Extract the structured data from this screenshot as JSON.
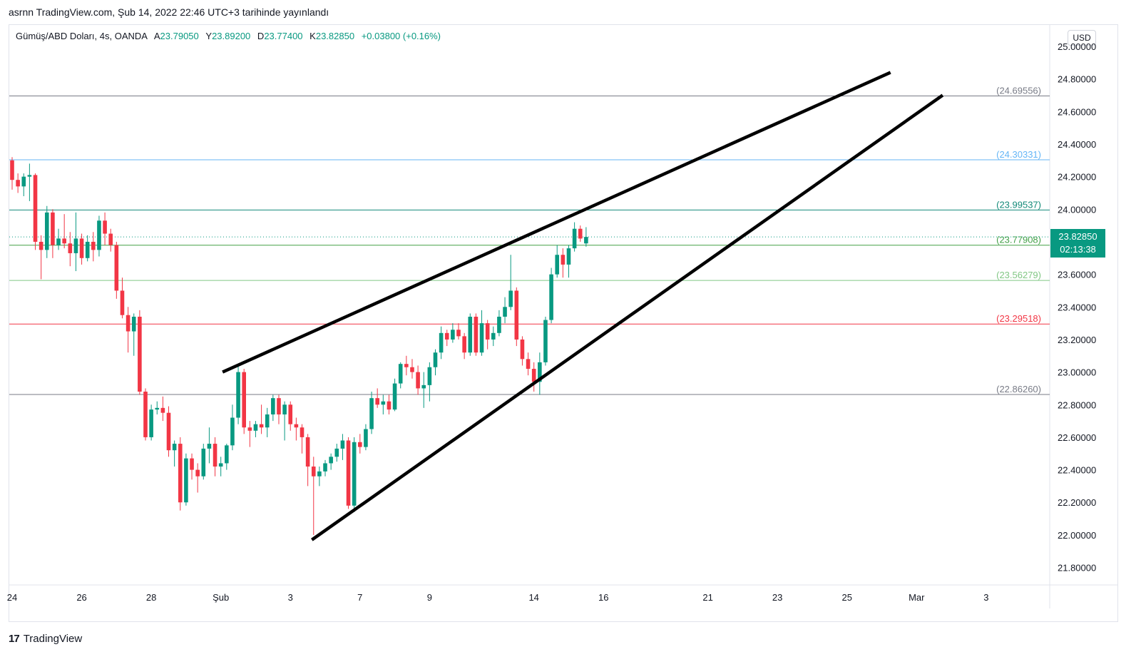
{
  "header": {
    "published": "asrnn TradingView.com, Şub 14, 2022 22:46 UTC+3 tarihinde yayınlandı"
  },
  "legend": {
    "symbol": "Gümüş/ABD Doları, 4s, OANDA",
    "open_label": "A",
    "open": "23.79050",
    "high_label": "Y",
    "high": "23.89200",
    "low_label": "D",
    "low": "23.77400",
    "close_label": "K",
    "close": "23.82850",
    "change": "+0.03800 (+0.16%)"
  },
  "currency": "USD",
  "last_price": {
    "price": "23.82850",
    "countdown": "02:13:38"
  },
  "footer": {
    "brand": "TradingView"
  },
  "colors": {
    "up": "#089981",
    "down": "#f23645",
    "line": "#000000"
  },
  "chart_data": {
    "type": "candlestick",
    "y_axis": {
      "ticks": [
        "25.00000",
        "24.80000",
        "24.60000",
        "24.40000",
        "24.20000",
        "24.00000",
        "23.80000",
        "23.60000",
        "23.40000",
        "23.20000",
        "23.00000",
        "22.80000",
        "22.60000",
        "22.40000",
        "22.20000",
        "22.00000",
        "21.80000"
      ],
      "range": [
        21.65,
        25.08
      ]
    },
    "x_axis": {
      "ticks": [
        {
          "label": "24",
          "i": 0
        },
        {
          "label": "26",
          "i": 12
        },
        {
          "label": "28",
          "i": 24
        },
        {
          "label": "Şub",
          "i": 36
        },
        {
          "label": "3",
          "i": 48
        },
        {
          "label": "7",
          "i": 60
        },
        {
          "label": "9",
          "i": 72
        },
        {
          "label": "14",
          "i": 90
        },
        {
          "label": "16",
          "i": 102
        },
        {
          "label": "21",
          "i": 120
        },
        {
          "label": "23",
          "i": 132
        },
        {
          "label": "25",
          "i": 144
        },
        {
          "label": "Mar",
          "i": 156
        },
        {
          "label": "3",
          "i": 168
        }
      ]
    },
    "horizontal_levels": [
      {
        "label": "(24.69556)",
        "value": 24.69556,
        "color": "#787b86"
      },
      {
        "label": "(24.30331)",
        "value": 24.30331,
        "color": "#64b5f6"
      },
      {
        "label": "(23.99537)",
        "value": 23.99537,
        "color": "#138a79"
      },
      {
        "label": "(23.77908)",
        "value": 23.77908,
        "color": "#43a047"
      },
      {
        "label": "(23.56279)",
        "value": 23.56279,
        "color": "#81c784"
      },
      {
        "label": "(23.29518)",
        "value": 23.29518,
        "color": "#f23645"
      },
      {
        "label": "(22.86260)",
        "value": 22.8626,
        "color": "#787b86"
      }
    ],
    "trend_lines": [
      {
        "i1": 36.3,
        "v1": 23.0,
        "i2": 151.5,
        "v2": 24.84
      },
      {
        "i1": 51.7,
        "v1": 21.97,
        "i2": 160.5,
        "v2": 24.7
      }
    ],
    "candles": [
      [
        24.3,
        24.32,
        24.12,
        24.18
      ],
      [
        24.18,
        24.22,
        24.1,
        24.14
      ],
      [
        24.14,
        24.22,
        24.08,
        24.2
      ],
      [
        24.2,
        24.28,
        24.05,
        24.21
      ],
      [
        24.21,
        24.22,
        23.75,
        23.8
      ],
      [
        23.8,
        23.84,
        23.57,
        23.75
      ],
      [
        23.75,
        24.02,
        23.7,
        23.98
      ],
      [
        23.98,
        24.0,
        23.7,
        23.78
      ],
      [
        23.78,
        23.88,
        23.75,
        23.82
      ],
      [
        23.82,
        23.97,
        23.76,
        23.79
      ],
      [
        23.79,
        23.86,
        23.65,
        23.73
      ],
      [
        23.73,
        23.98,
        23.62,
        23.82
      ],
      [
        23.82,
        23.85,
        23.66,
        23.7
      ],
      [
        23.7,
        23.84,
        23.68,
        23.8
      ],
      [
        23.8,
        23.86,
        23.68,
        23.75
      ],
      [
        23.75,
        23.96,
        23.71,
        23.93
      ],
      [
        23.93,
        23.98,
        23.78,
        23.85
      ],
      [
        23.85,
        23.88,
        23.74,
        23.78
      ],
      [
        23.78,
        23.8,
        23.45,
        23.5
      ],
      [
        23.5,
        23.58,
        23.33,
        23.35
      ],
      [
        23.35,
        23.4,
        23.12,
        23.25
      ],
      [
        23.25,
        23.36,
        23.1,
        23.34
      ],
      [
        23.34,
        23.38,
        22.86,
        22.88
      ],
      [
        22.88,
        22.9,
        22.58,
        22.6
      ],
      [
        22.6,
        22.8,
        22.58,
        22.77
      ],
      [
        22.77,
        22.82,
        22.74,
        22.78
      ],
      [
        22.78,
        22.85,
        22.7,
        22.75
      ],
      [
        22.75,
        22.79,
        22.48,
        22.52
      ],
      [
        22.52,
        22.58,
        22.42,
        22.56
      ],
      [
        22.56,
        22.6,
        22.15,
        22.2
      ],
      [
        22.2,
        22.5,
        22.18,
        22.47
      ],
      [
        22.47,
        22.5,
        22.34,
        22.4
      ],
      [
        22.4,
        22.44,
        22.26,
        22.36
      ],
      [
        22.36,
        22.56,
        22.34,
        22.53
      ],
      [
        22.53,
        22.66,
        22.44,
        22.56
      ],
      [
        22.56,
        22.6,
        22.36,
        22.42
      ],
      [
        22.42,
        22.48,
        22.36,
        22.44
      ],
      [
        22.44,
        22.56,
        22.4,
        22.55
      ],
      [
        22.55,
        22.8,
        22.52,
        22.72
      ],
      [
        22.72,
        23.04,
        22.68,
        23.0
      ],
      [
        23.0,
        23.02,
        22.62,
        22.66
      ],
      [
        22.66,
        22.7,
        22.54,
        22.64
      ],
      [
        22.64,
        22.7,
        22.6,
        22.68
      ],
      [
        22.68,
        22.8,
        22.62,
        22.66
      ],
      [
        22.66,
        22.78,
        22.6,
        22.74
      ],
      [
        22.74,
        22.86,
        22.7,
        22.84
      ],
      [
        22.84,
        22.86,
        22.68,
        22.74
      ],
      [
        22.74,
        22.82,
        22.58,
        22.8
      ],
      [
        22.8,
        22.82,
        22.64,
        22.68
      ],
      [
        22.68,
        22.72,
        22.58,
        22.66
      ],
      [
        22.66,
        22.68,
        22.5,
        22.6
      ],
      [
        22.6,
        22.62,
        22.3,
        22.42
      ],
      [
        22.42,
        22.48,
        22.0,
        22.36
      ],
      [
        22.36,
        22.42,
        22.3,
        22.39
      ],
      [
        22.39,
        22.46,
        22.36,
        22.44
      ],
      [
        22.44,
        22.5,
        22.4,
        22.48
      ],
      [
        22.48,
        22.56,
        22.45,
        22.53
      ],
      [
        22.53,
        22.62,
        22.46,
        22.58
      ],
      [
        22.58,
        22.6,
        22.16,
        22.18
      ],
      [
        22.18,
        22.6,
        22.14,
        22.57
      ],
      [
        22.57,
        22.62,
        22.5,
        22.54
      ],
      [
        22.54,
        22.68,
        22.52,
        22.65
      ],
      [
        22.65,
        22.88,
        22.62,
        22.84
      ],
      [
        22.84,
        22.9,
        22.78,
        22.8
      ],
      [
        22.8,
        22.86,
        22.74,
        22.82
      ],
      [
        22.82,
        22.86,
        22.74,
        22.77
      ],
      [
        22.77,
        22.96,
        22.76,
        22.93
      ],
      [
        22.93,
        23.06,
        22.9,
        23.05
      ],
      [
        23.05,
        23.1,
        22.98,
        23.03
      ],
      [
        23.03,
        23.08,
        22.96,
        23.0
      ],
      [
        23.0,
        23.04,
        22.86,
        22.9
      ],
      [
        22.9,
        23.0,
        22.78,
        22.92
      ],
      [
        22.92,
        23.06,
        22.82,
        23.03
      ],
      [
        23.03,
        23.14,
        22.98,
        23.12
      ],
      [
        23.12,
        23.28,
        23.08,
        23.24
      ],
      [
        23.24,
        23.26,
        23.16,
        23.2
      ],
      [
        23.2,
        23.3,
        23.18,
        23.26
      ],
      [
        23.26,
        23.3,
        23.2,
        23.22
      ],
      [
        23.22,
        23.24,
        23.08,
        23.12
      ],
      [
        23.12,
        23.36,
        23.1,
        23.34
      ],
      [
        23.34,
        23.36,
        23.1,
        23.12
      ],
      [
        23.12,
        23.38,
        23.1,
        23.3
      ],
      [
        23.3,
        23.32,
        23.14,
        23.2
      ],
      [
        23.2,
        23.28,
        23.16,
        23.24
      ],
      [
        23.24,
        23.38,
        23.22,
        23.34
      ],
      [
        23.34,
        23.46,
        23.3,
        23.4
      ],
      [
        23.4,
        23.72,
        23.38,
        23.5
      ],
      [
        23.5,
        23.52,
        23.16,
        23.2
      ],
      [
        23.2,
        23.22,
        23.04,
        23.08
      ],
      [
        23.08,
        23.12,
        22.98,
        23.02
      ],
      [
        23.02,
        23.06,
        22.88,
        22.94
      ],
      [
        22.94,
        23.12,
        22.86,
        23.06
      ],
      [
        23.06,
        23.34,
        23.04,
        23.32
      ],
      [
        23.32,
        23.64,
        23.3,
        23.6
      ],
      [
        23.6,
        23.78,
        23.58,
        23.72
      ],
      [
        23.72,
        23.76,
        23.58,
        23.66
      ],
      [
        23.66,
        23.78,
        23.58,
        23.76
      ],
      [
        23.76,
        23.92,
        23.74,
        23.88
      ],
      [
        23.88,
        23.9,
        23.8,
        23.82
      ],
      [
        23.79,
        23.89,
        23.77,
        23.83
      ]
    ]
  }
}
